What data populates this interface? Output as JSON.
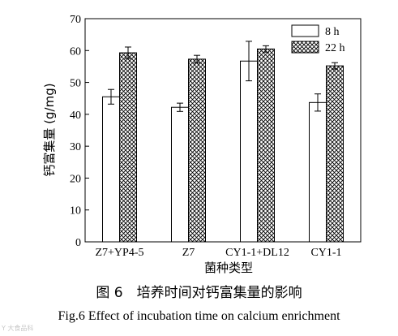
{
  "chart_data": {
    "type": "bar",
    "ylabel": "钙富集量 (g/mg)",
    "xlabel": "菌种类型",
    "categories": [
      "Z7+YP4-5",
      "Z7",
      "CY1-1+DL12",
      "CY1-1"
    ],
    "ylim": [
      0,
      70
    ],
    "yticks": [
      0,
      10,
      20,
      30,
      40,
      50,
      60,
      70
    ],
    "legend_position": "top-right",
    "series": [
      {
        "name": "8 h",
        "values": [
          45.5,
          42.2,
          56.7,
          43.7
        ],
        "errors": [
          2.3,
          1.3,
          6.2,
          2.7
        ],
        "fill": "white"
      },
      {
        "name": "22 h",
        "values": [
          59.3,
          57.3,
          60.5,
          55.2
        ],
        "errors": [
          1.8,
          1.2,
          1.0,
          1.0
        ],
        "fill": "crosshatch"
      }
    ]
  },
  "captions": {
    "figure_cn": "图 6　培养时间对钙富集量的影响",
    "figure_en": "Fig.6    Effect of incubation time on calcium enrichment"
  },
  "watermark": "Y 大食品科"
}
